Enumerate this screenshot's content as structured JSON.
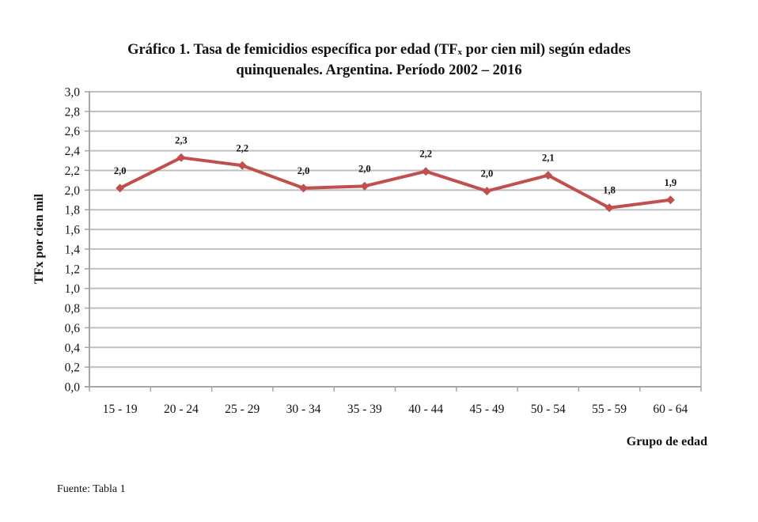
{
  "title_line1_prefix": "Gráfico 1. Tasa de femicidios específica por edad (TF",
  "title_line1_sub": "x",
  "title_line1_suffix": " por cien mil) según edades",
  "title_line2": "quinquenales. Argentina. Período 2002 – 2016",
  "source": "Fuente: Tabla 1",
  "colors": {
    "line": "#C0504D",
    "grid": "#BFBFBF",
    "axis": "#A6A6A6"
  },
  "chart_data": {
    "type": "line",
    "title": "Gráfico 1. Tasa de femicidios específica por edad (TFx por cien mil) según edades quinquenales. Argentina. Período 2002 – 2016",
    "xlabel": "Grupo de edad",
    "ylabel": "TFx por cien mil",
    "categories": [
      "15 - 19",
      "20 - 24",
      "25 - 29",
      "30 - 34",
      "35 - 39",
      "40 - 44",
      "45 - 49",
      "50 - 54",
      "55 - 59",
      "60 - 64"
    ],
    "series": [
      {
        "name": "TFx por cien mil",
        "values": [
          2.02,
          2.33,
          2.25,
          2.02,
          2.04,
          2.19,
          1.99,
          2.15,
          1.82,
          1.9
        ],
        "data_labels": [
          "2,0",
          "2,3",
          "2,2",
          "2,0",
          "2,0",
          "2,2",
          "2,0",
          "2,1",
          "1,8",
          "1,9"
        ],
        "marker": "diamond"
      }
    ],
    "ylim": [
      0,
      3.0
    ],
    "yticks": [
      "0,0",
      "0,2",
      "0,4",
      "0,6",
      "0,8",
      "1,0",
      "1,2",
      "1,4",
      "1,6",
      "1,8",
      "2,0",
      "2,2",
      "2,4",
      "2,6",
      "2,8",
      "3,0"
    ],
    "grid": true,
    "legend": "none"
  }
}
